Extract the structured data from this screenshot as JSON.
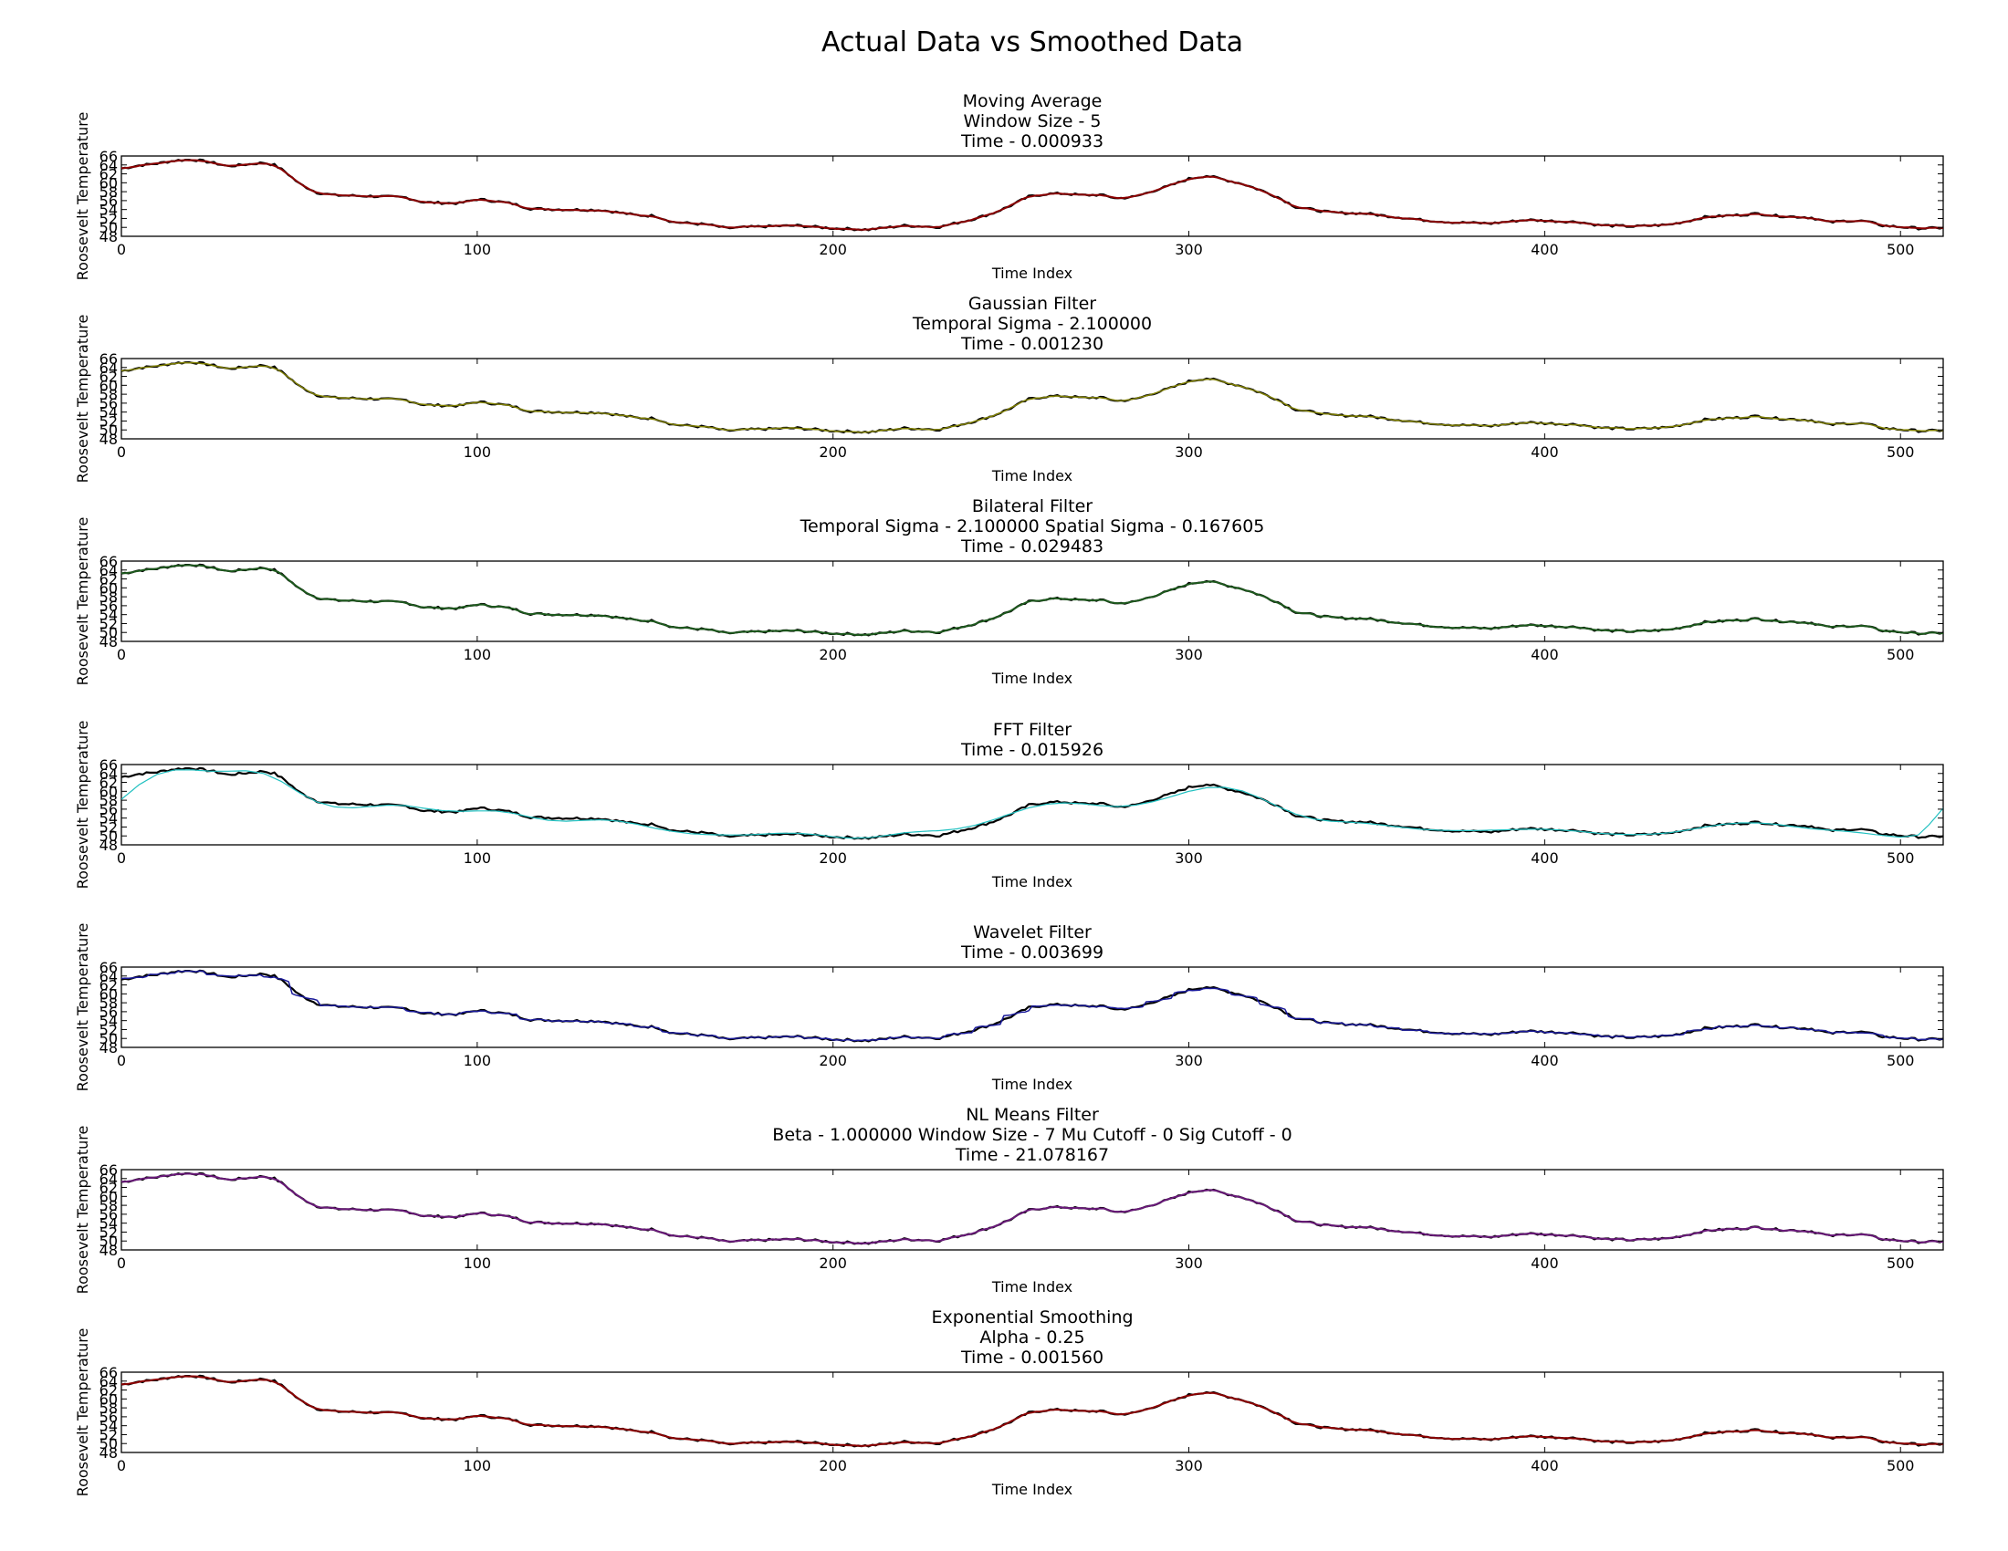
{
  "figure_title": "Actual Data vs Smoothed Data",
  "chart_data": [
    {
      "type": "line",
      "title": [
        "Moving Average",
        "Window Size - 5",
        "Time - 0.000933"
      ],
      "xlabel": "Time Index",
      "ylabel": "Roosevelt Temperature",
      "xlim": [
        0,
        512
      ],
      "ylim": [
        48,
        66
      ],
      "xticks": [
        0,
        100,
        200,
        300,
        400,
        500
      ],
      "yticks": [
        48,
        50,
        52,
        54,
        56,
        58,
        60,
        62,
        64,
        66
      ],
      "series": [
        {
          "role": "actual",
          "color": "#000000",
          "width": 2.2
        },
        {
          "role": "smoothed",
          "color": "#8b0000",
          "width": 2.0
        }
      ]
    },
    {
      "type": "line",
      "title": [
        "Gaussian Filter",
        "Temporal Sigma - 2.100000",
        "Time - 0.001230"
      ],
      "xlabel": "Time Index",
      "ylabel": "Roosevelt Temperature",
      "xlim": [
        0,
        512
      ],
      "ylim": [
        48,
        66
      ],
      "xticks": [
        0,
        100,
        200,
        300,
        400,
        500
      ],
      "yticks": [
        48,
        50,
        52,
        54,
        56,
        58,
        60,
        62,
        64,
        66
      ],
      "series": [
        {
          "role": "actual",
          "color": "#000000",
          "width": 2.2
        },
        {
          "role": "smoothed",
          "color": "#808000",
          "width": 1.5
        }
      ]
    },
    {
      "type": "line",
      "title": [
        "Bilateral Filter",
        "Temporal Sigma - 2.100000  Spatial Sigma - 0.167605",
        "Time - 0.029483"
      ],
      "xlabel": "Time Index",
      "ylabel": "Roosevelt Temperature",
      "xlim": [
        0,
        512
      ],
      "ylim": [
        48,
        66
      ],
      "xticks": [
        0,
        100,
        200,
        300,
        400,
        500
      ],
      "yticks": [
        48,
        50,
        52,
        54,
        56,
        58,
        60,
        62,
        64,
        66
      ],
      "series": [
        {
          "role": "actual",
          "color": "#000000",
          "width": 2.2
        },
        {
          "role": "smoothed",
          "color": "#1e5a1e",
          "width": 2.0
        }
      ]
    },
    {
      "type": "line",
      "title": [
        "FFT Filter",
        "Time - 0.015926"
      ],
      "xlabel": "Time Index",
      "ylabel": "Roosevelt Temperature",
      "xlim": [
        0,
        512
      ],
      "ylim": [
        48,
        66
      ],
      "xticks": [
        0,
        100,
        200,
        300,
        400,
        500
      ],
      "yticks": [
        48,
        50,
        52,
        54,
        56,
        58,
        60,
        62,
        64,
        66
      ],
      "series": [
        {
          "role": "actual",
          "color": "#000000",
          "width": 2.2
        },
        {
          "role": "smoothed",
          "color": "#20c0c0",
          "width": 1.2
        }
      ]
    },
    {
      "type": "line",
      "title": [
        "Wavelet Filter",
        "Time - 0.003699"
      ],
      "xlabel": "Time Index",
      "ylabel": "Roosevelt Temperature",
      "xlim": [
        0,
        512
      ],
      "ylim": [
        48,
        66
      ],
      "xticks": [
        0,
        100,
        200,
        300,
        400,
        500
      ],
      "yticks": [
        48,
        50,
        52,
        54,
        56,
        58,
        60,
        62,
        64,
        66
      ],
      "series": [
        {
          "role": "actual",
          "color": "#000000",
          "width": 2.2
        },
        {
          "role": "smoothed",
          "color": "#1a1a9a",
          "width": 1.5
        }
      ]
    },
    {
      "type": "line",
      "title": [
        "NL Means Filter",
        "Beta - 1.000000  Window Size - 7  Mu Cutoff - 0  Sig Cutoff - 0",
        "Time - 21.078167"
      ],
      "xlabel": "Time Index",
      "ylabel": "Roosevelt Temperature",
      "xlim": [
        0,
        512
      ],
      "ylim": [
        48,
        66
      ],
      "xticks": [
        0,
        100,
        200,
        300,
        400,
        500
      ],
      "yticks": [
        48,
        50,
        52,
        54,
        56,
        58,
        60,
        62,
        64,
        66
      ],
      "series": [
        {
          "role": "actual",
          "color": "#000000",
          "width": 2.2
        },
        {
          "role": "smoothed",
          "color": "#6a1a7a",
          "width": 2.0
        }
      ]
    },
    {
      "type": "line",
      "title": [
        "Exponential Smoothing",
        "Alpha - 0.25",
        "Time - 0.001560"
      ],
      "xlabel": "Time Index",
      "ylabel": "Roosevelt Temperature",
      "xlim": [
        0,
        512
      ],
      "ylim": [
        48,
        66
      ],
      "xticks": [
        0,
        100,
        200,
        300,
        400,
        500
      ],
      "yticks": [
        48,
        50,
        52,
        54,
        56,
        58,
        60,
        62,
        64,
        66
      ],
      "series": [
        {
          "role": "actual",
          "color": "#000000",
          "width": 2.2
        },
        {
          "role": "smoothed",
          "color": "#8b0000",
          "width": 2.0
        }
      ]
    }
  ],
  "actual_series": [
    [
      0,
      63.2
    ],
    [
      5,
      63.9
    ],
    [
      10,
      64.3
    ],
    [
      15,
      65.0
    ],
    [
      20,
      65.2
    ],
    [
      25,
      64.6
    ],
    [
      30,
      63.7
    ],
    [
      35,
      64.1
    ],
    [
      40,
      64.5
    ],
    [
      43,
      64.0
    ],
    [
      46,
      62.5
    ],
    [
      50,
      59.8
    ],
    [
      55,
      57.8
    ],
    [
      60,
      57.2
    ],
    [
      70,
      57.0
    ],
    [
      80,
      56.7
    ],
    [
      85,
      55.6
    ],
    [
      95,
      55.4
    ],
    [
      100,
      56.3
    ],
    [
      105,
      55.9
    ],
    [
      110,
      55.3
    ],
    [
      115,
      54.2
    ],
    [
      125,
      54.0
    ],
    [
      135,
      53.9
    ],
    [
      145,
      52.7
    ],
    [
      150,
      52.6
    ],
    [
      155,
      51.2
    ],
    [
      165,
      50.6
    ],
    [
      170,
      49.8
    ],
    [
      180,
      50.2
    ],
    [
      190,
      50.4
    ],
    [
      200,
      49.8
    ],
    [
      210,
      49.5
    ],
    [
      220,
      50.4
    ],
    [
      230,
      50.1
    ],
    [
      240,
      52.0
    ],
    [
      245,
      53.2
    ],
    [
      250,
      54.9
    ],
    [
      255,
      56.9
    ],
    [
      260,
      57.5
    ],
    [
      265,
      57.6
    ],
    [
      270,
      57.2
    ],
    [
      275,
      57.3
    ],
    [
      280,
      56.5
    ],
    [
      285,
      56.9
    ],
    [
      290,
      58.2
    ],
    [
      295,
      59.4
    ],
    [
      300,
      60.9
    ],
    [
      305,
      61.6
    ],
    [
      310,
      60.7
    ],
    [
      315,
      59.8
    ],
    [
      320,
      58.4
    ],
    [
      325,
      56.8
    ],
    [
      330,
      54.6
    ],
    [
      340,
      53.3
    ],
    [
      350,
      53.1
    ],
    [
      355,
      52.6
    ],
    [
      360,
      52.2
    ],
    [
      365,
      51.7
    ],
    [
      375,
      51.1
    ],
    [
      385,
      50.9
    ],
    [
      395,
      51.7
    ],
    [
      400,
      51.5
    ],
    [
      410,
      51.2
    ],
    [
      415,
      50.5
    ],
    [
      425,
      50.2
    ],
    [
      435,
      50.6
    ],
    [
      440,
      51.4
    ],
    [
      445,
      52.3
    ],
    [
      455,
      52.8
    ],
    [
      460,
      53.1
    ],
    [
      465,
      52.6
    ],
    [
      475,
      52.2
    ],
    [
      480,
      51.1
    ],
    [
      485,
      51.5
    ],
    [
      490,
      51.4
    ],
    [
      495,
      50.4
    ],
    [
      505,
      49.8
    ],
    [
      510,
      49.8
    ],
    [
      512,
      50.0
    ]
  ],
  "fft_series": [
    [
      0,
      58.2
    ],
    [
      5,
      61.5
    ],
    [
      10,
      63.8
    ],
    [
      15,
      64.8
    ],
    [
      20,
      64.8
    ],
    [
      25,
      64.5
    ],
    [
      30,
      64.5
    ],
    [
      35,
      64.6
    ],
    [
      40,
      64.0
    ],
    [
      45,
      62.2
    ],
    [
      50,
      59.7
    ],
    [
      55,
      57.6
    ],
    [
      60,
      56.5
    ],
    [
      65,
      56.3
    ],
    [
      70,
      56.6
    ],
    [
      75,
      56.9
    ],
    [
      80,
      56.8
    ],
    [
      85,
      56.2
    ],
    [
      90,
      55.7
    ],
    [
      95,
      55.5
    ],
    [
      100,
      55.6
    ],
    [
      105,
      55.6
    ],
    [
      110,
      55.1
    ],
    [
      115,
      54.2
    ],
    [
      120,
      53.5
    ],
    [
      125,
      53.3
    ],
    [
      130,
      53.5
    ],
    [
      135,
      53.6
    ],
    [
      140,
      53.3
    ],
    [
      145,
      52.6
    ],
    [
      150,
      51.7
    ],
    [
      155,
      51.0
    ],
    [
      160,
      50.5
    ],
    [
      165,
      50.3
    ],
    [
      170,
      50.2
    ],
    [
      175,
      50.2
    ],
    [
      180,
      50.4
    ],
    [
      185,
      50.6
    ],
    [
      190,
      50.6
    ],
    [
      195,
      50.3
    ],
    [
      200,
      49.8
    ],
    [
      205,
      49.5
    ],
    [
      210,
      49.6
    ],
    [
      215,
      50.1
    ],
    [
      220,
      50.7
    ],
    [
      225,
      51.0
    ],
    [
      230,
      51.2
    ],
    [
      235,
      51.6
    ],
    [
      240,
      52.4
    ],
    [
      245,
      53.6
    ],
    [
      250,
      55.0
    ],
    [
      255,
      56.3
    ],
    [
      260,
      57.1
    ],
    [
      265,
      57.4
    ],
    [
      270,
      57.2
    ],
    [
      275,
      56.8
    ],
    [
      280,
      56.6
    ],
    [
      285,
      56.9
    ],
    [
      290,
      57.7
    ],
    [
      295,
      58.8
    ],
    [
      300,
      60.0
    ],
    [
      305,
      60.8
    ],
    [
      310,
      60.9
    ],
    [
      315,
      60.1
    ],
    [
      320,
      58.5
    ],
    [
      325,
      56.6
    ],
    [
      330,
      54.9
    ],
    [
      335,
      53.8
    ],
    [
      340,
      53.3
    ],
    [
      345,
      53.1
    ],
    [
      350,
      52.8
    ],
    [
      355,
      52.4
    ],
    [
      360,
      51.9
    ],
    [
      365,
      51.5
    ],
    [
      370,
      51.3
    ],
    [
      375,
      51.2
    ],
    [
      380,
      51.2
    ],
    [
      385,
      51.3
    ],
    [
      390,
      51.4
    ],
    [
      395,
      51.5
    ],
    [
      400,
      51.5
    ],
    [
      405,
      51.3
    ],
    [
      410,
      51.0
    ],
    [
      415,
      50.6
    ],
    [
      420,
      50.4
    ],
    [
      425,
      50.3
    ],
    [
      430,
      50.4
    ],
    [
      435,
      50.7
    ],
    [
      440,
      51.3
    ],
    [
      445,
      52.0
    ],
    [
      450,
      52.6
    ],
    [
      455,
      52.9
    ],
    [
      460,
      52.9
    ],
    [
      465,
      52.6
    ],
    [
      470,
      52.1
    ],
    [
      475,
      51.6
    ],
    [
      480,
      51.3
    ],
    [
      485,
      51.0
    ],
    [
      490,
      50.6
    ],
    [
      495,
      50.1
    ],
    [
      500,
      49.7
    ],
    [
      505,
      50.2
    ],
    [
      508,
      52.5
    ],
    [
      512,
      56.2
    ]
  ]
}
